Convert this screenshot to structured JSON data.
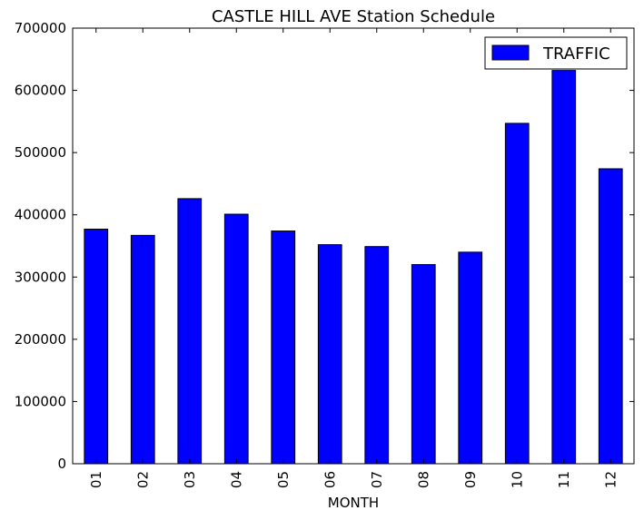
{
  "chart_data": {
    "type": "bar",
    "title": "CASTLE HILL AVE Station Schedule",
    "xlabel": "MONTH",
    "ylabel": "",
    "categories": [
      "01",
      "02",
      "03",
      "04",
      "05",
      "06",
      "07",
      "08",
      "09",
      "10",
      "11",
      "12"
    ],
    "series": [
      {
        "name": "TRAFFIC",
        "color": "#0000ff",
        "values": [
          377000,
          367000,
          426000,
          401000,
          374000,
          352000,
          349000,
          320000,
          340000,
          547000,
          632000,
          474000
        ]
      }
    ],
    "ylim": [
      0,
      700000
    ],
    "yticks": [
      "0",
      "100000",
      "200000",
      "300000",
      "400000",
      "500000",
      "600000",
      "700000"
    ],
    "grid": false,
    "legend_position": "top-right"
  }
}
